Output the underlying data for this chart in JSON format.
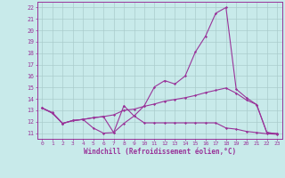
{
  "xlabel": "Windchill (Refroidissement éolien,°C)",
  "x": [
    0,
    1,
    2,
    3,
    4,
    5,
    6,
    7,
    8,
    9,
    10,
    11,
    12,
    13,
    14,
    15,
    16,
    17,
    18,
    19,
    20,
    21,
    22,
    23
  ],
  "line1": [
    13.2,
    12.8,
    11.85,
    12.1,
    12.2,
    11.45,
    11.0,
    11.05,
    11.85,
    12.5,
    11.9,
    11.9,
    11.9,
    11.9,
    11.9,
    11.9,
    11.9,
    11.9,
    11.45,
    11.35,
    11.15,
    11.05,
    10.95,
    10.9
  ],
  "line2": [
    13.2,
    12.75,
    11.85,
    12.1,
    12.2,
    12.35,
    12.45,
    11.05,
    13.4,
    12.5,
    13.4,
    15.05,
    15.6,
    15.3,
    16.0,
    18.1,
    19.5,
    21.5,
    22.0,
    14.85,
    14.1,
    13.5,
    11.05,
    10.95
  ],
  "line3": [
    13.2,
    12.75,
    11.85,
    12.1,
    12.2,
    12.35,
    12.45,
    12.6,
    13.0,
    13.1,
    13.35,
    13.55,
    13.8,
    13.95,
    14.1,
    14.3,
    14.55,
    14.75,
    14.95,
    14.5,
    13.9,
    13.5,
    11.05,
    10.95
  ],
  "color": "#993399",
  "bg_color": "#c8eaea",
  "grid_color": "#aacccc",
  "ylim": [
    10.5,
    22.5
  ],
  "yticks": [
    11,
    12,
    13,
    14,
    15,
    16,
    17,
    18,
    19,
    20,
    21,
    22
  ],
  "xticks": [
    0,
    1,
    2,
    3,
    4,
    5,
    6,
    7,
    8,
    9,
    10,
    11,
    12,
    13,
    14,
    15,
    16,
    17,
    18,
    19,
    20,
    21,
    22,
    23
  ]
}
